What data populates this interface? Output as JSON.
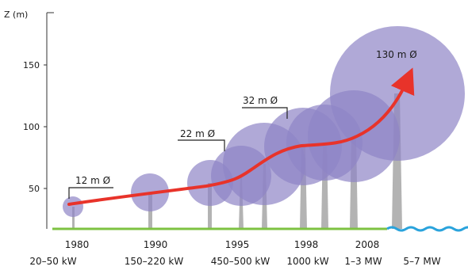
{
  "axis": {
    "y_label": "Z (m)",
    "y_ticks": [
      "150",
      "100",
      "50"
    ]
  },
  "diameter_labels": [
    "12 m Ø",
    "22 m Ø",
    "32 m Ø",
    "130 m Ø"
  ],
  "years": [
    "1980",
    "1990",
    "1995",
    "1998",
    "2008"
  ],
  "power_ratings": [
    "20–50 kW",
    "150–220 kW",
    "450–500 kW",
    "1000 kW",
    "1–3 MW",
    "5–7 MW"
  ],
  "colors": {
    "rotor_fill": "#8f85c6",
    "tower": "#b3b3b3",
    "trend_arrow": "#e8332a",
    "ground": "#7dc242",
    "sea": "#2aa3dc",
    "axis": "#333333"
  }
}
